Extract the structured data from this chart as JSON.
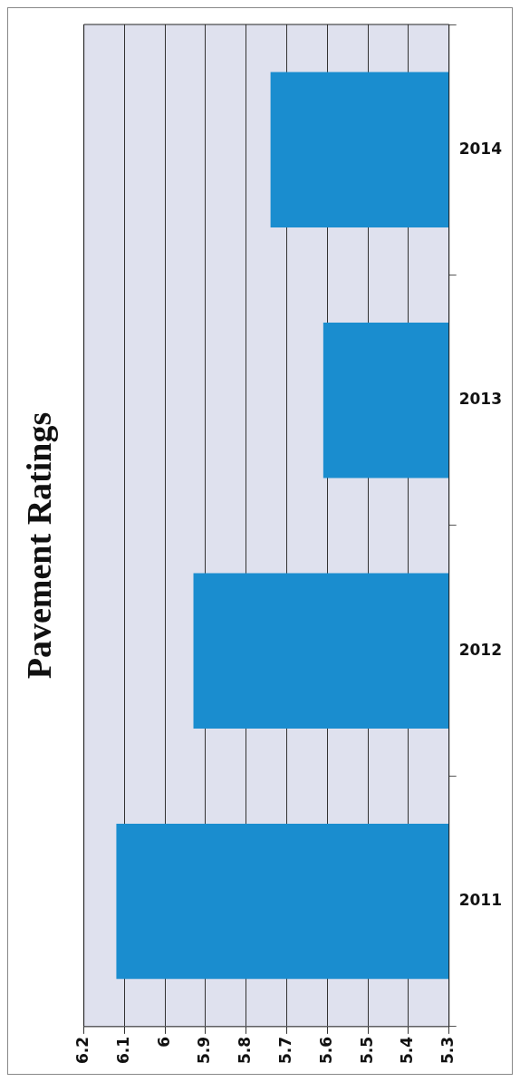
{
  "chart_data": {
    "type": "bar",
    "orientation": "horizontal",
    "title": "Pavement Ratings",
    "categories": [
      "2014",
      "2013",
      "2012",
      "2011"
    ],
    "values": [
      5.74,
      5.61,
      5.93,
      6.12
    ],
    "color": "#1a8dcf",
    "xlim": [
      6.2,
      5.3
    ],
    "xticks": [
      6.2,
      6.1,
      6,
      5.9,
      5.8,
      5.7,
      5.6,
      5.5,
      5.4,
      5.3
    ],
    "grid": "x"
  }
}
